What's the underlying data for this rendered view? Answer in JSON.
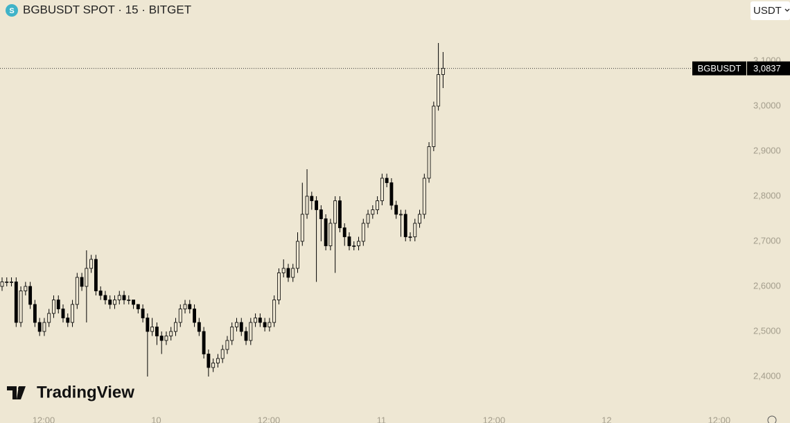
{
  "chart_data": {
    "type": "candlestick",
    "title": "BGBUSDT SPOT · 15 · BITGET",
    "currency": "USDT",
    "brand": "TradingView",
    "x": [
      0,
      1,
      2,
      3,
      4,
      5,
      6,
      7,
      8,
      9,
      10,
      11,
      12,
      13,
      14,
      15,
      16,
      17,
      18,
      19,
      20,
      21,
      22,
      23,
      24,
      25,
      26,
      27,
      28,
      29,
      30,
      31,
      32,
      33,
      34,
      35,
      36,
      37,
      38,
      39,
      40,
      41,
      42,
      43,
      44,
      45,
      46,
      47,
      48,
      49,
      50,
      51,
      52,
      53,
      54,
      55,
      56,
      57,
      58,
      59,
      60,
      61,
      62,
      63,
      64,
      65,
      66,
      67,
      68,
      69,
      70,
      71,
      72,
      73,
      74,
      75,
      76,
      77,
      78,
      79,
      80,
      81,
      82,
      83,
      84,
      85,
      86,
      87,
      88,
      89,
      90,
      91,
      92,
      93,
      94
    ],
    "open": [
      2.6,
      2.61,
      2.61,
      2.61,
      2.52,
      2.59,
      2.6,
      2.56,
      2.52,
      2.5,
      2.52,
      2.54,
      2.57,
      2.55,
      2.53,
      2.52,
      2.56,
      2.62,
      2.6,
      2.64,
      2.66,
      2.59,
      2.58,
      2.57,
      2.56,
      2.57,
      2.58,
      2.57,
      2.57,
      2.56,
      2.55,
      2.53,
      2.5,
      2.51,
      2.49,
      2.48,
      2.49,
      2.5,
      2.52,
      2.55,
      2.56,
      2.55,
      2.52,
      2.5,
      2.45,
      2.42,
      2.43,
      2.44,
      2.46,
      2.48,
      2.51,
      2.52,
      2.5,
      2.48,
      2.52,
      2.53,
      2.52,
      2.51,
      2.52,
      2.57,
      2.63,
      2.64,
      2.62,
      2.64,
      2.7,
      2.76,
      2.8,
      2.79,
      2.77,
      2.75,
      2.69,
      2.74,
      2.79,
      2.73,
      2.71,
      2.69,
      2.69,
      2.7,
      2.74,
      2.76,
      2.77,
      2.79,
      2.84,
      2.83,
      2.78,
      2.76,
      2.76,
      2.71,
      2.71,
      2.74,
      2.76,
      2.84,
      2.91,
      3.0,
      3.07
    ],
    "high": [
      2.62,
      2.62,
      2.62,
      2.62,
      2.6,
      2.61,
      2.61,
      2.57,
      2.53,
      2.53,
      2.55,
      2.58,
      2.58,
      2.56,
      2.54,
      2.57,
      2.63,
      2.63,
      2.68,
      2.67,
      2.67,
      2.6,
      2.59,
      2.58,
      2.58,
      2.59,
      2.59,
      2.58,
      2.57,
      2.56,
      2.56,
      2.54,
      2.53,
      2.52,
      2.5,
      2.5,
      2.51,
      2.53,
      2.56,
      2.57,
      2.57,
      2.56,
      2.53,
      2.51,
      2.46,
      2.44,
      2.45,
      2.47,
      2.49,
      2.52,
      2.53,
      2.53,
      2.51,
      2.53,
      2.54,
      2.54,
      2.53,
      2.53,
      2.58,
      2.64,
      2.66,
      2.65,
      2.65,
      2.72,
      2.83,
      2.86,
      2.81,
      2.8,
      2.78,
      2.76,
      2.75,
      2.8,
      2.8,
      2.74,
      2.72,
      2.7,
      2.71,
      2.75,
      2.77,
      2.78,
      2.8,
      2.85,
      2.85,
      2.84,
      2.79,
      2.77,
      2.77,
      2.72,
      2.75,
      2.77,
      2.85,
      2.92,
      3.01,
      3.14,
      3.12
    ],
    "low": [
      2.59,
      2.6,
      2.6,
      2.51,
      2.51,
      2.58,
      2.55,
      2.51,
      2.49,
      2.49,
      2.51,
      2.53,
      2.54,
      2.52,
      2.51,
      2.51,
      2.55,
      2.59,
      2.52,
      2.63,
      2.58,
      2.57,
      2.56,
      2.55,
      2.55,
      2.56,
      2.56,
      2.56,
      2.55,
      2.54,
      2.52,
      2.4,
      2.49,
      2.47,
      2.45,
      2.47,
      2.48,
      2.49,
      2.51,
      2.54,
      2.54,
      2.51,
      2.49,
      2.44,
      2.4,
      2.41,
      2.42,
      2.43,
      2.45,
      2.47,
      2.5,
      2.49,
      2.47,
      2.47,
      2.51,
      2.51,
      2.5,
      2.5,
      2.51,
      2.56,
      2.62,
      2.61,
      2.61,
      2.63,
      2.69,
      2.75,
      2.77,
      2.61,
      2.7,
      2.68,
      2.68,
      2.63,
      2.72,
      2.69,
      2.68,
      2.68,
      2.68,
      2.69,
      2.73,
      2.75,
      2.76,
      2.78,
      2.82,
      2.77,
      2.75,
      2.71,
      2.7,
      2.7,
      2.7,
      2.73,
      2.75,
      2.83,
      2.9,
      2.99,
      3.04
    ],
    "close": [
      2.61,
      2.61,
      2.61,
      2.52,
      2.59,
      2.6,
      2.56,
      2.52,
      2.5,
      2.52,
      2.54,
      2.57,
      2.55,
      2.53,
      2.52,
      2.56,
      2.62,
      2.6,
      2.64,
      2.66,
      2.59,
      2.58,
      2.57,
      2.56,
      2.57,
      2.58,
      2.57,
      2.57,
      2.56,
      2.55,
      2.53,
      2.5,
      2.51,
      2.49,
      2.48,
      2.49,
      2.5,
      2.52,
      2.55,
      2.56,
      2.55,
      2.52,
      2.5,
      2.45,
      2.42,
      2.43,
      2.44,
      2.46,
      2.48,
      2.51,
      2.52,
      2.5,
      2.48,
      2.52,
      2.53,
      2.52,
      2.51,
      2.52,
      2.57,
      2.63,
      2.64,
      2.62,
      2.64,
      2.7,
      2.76,
      2.8,
      2.79,
      2.77,
      2.75,
      2.69,
      2.74,
      2.79,
      2.73,
      2.71,
      2.69,
      2.69,
      2.7,
      2.74,
      2.76,
      2.77,
      2.79,
      2.84,
      2.83,
      2.78,
      2.76,
      2.76,
      2.71,
      2.71,
      2.74,
      2.76,
      2.84,
      2.91,
      3.0,
      3.07,
      3.0837
    ],
    "price_line": {
      "name": "BGBUSDT",
      "value": 3.0837,
      "label": "3,0837"
    },
    "xlim": [
      0,
      160
    ],
    "ylim": [
      2.2969,
      3.2354
    ],
    "yticks": [
      {
        "value": 2.4,
        "label": "2,4000"
      },
      {
        "value": 2.5,
        "label": "2,5000"
      },
      {
        "value": 2.6,
        "label": "2,6000"
      },
      {
        "value": 2.7,
        "label": "2,7000"
      },
      {
        "value": 2.8,
        "label": "2,8000"
      },
      {
        "value": 2.9,
        "label": "2,9000"
      },
      {
        "value": 3.0,
        "label": "3,0000"
      },
      {
        "value": 3.1,
        "label": "3,1000"
      }
    ],
    "xticks": [
      {
        "value": 9.3,
        "label": "12:00"
      },
      {
        "value": 33.3,
        "label": "10"
      },
      {
        "value": 57.3,
        "label": "12:00"
      },
      {
        "value": 81.3,
        "label": "11"
      },
      {
        "value": 105.3,
        "label": "12:00"
      },
      {
        "value": 129.3,
        "label": "12"
      },
      {
        "value": 153.3,
        "label": "12:00"
      }
    ],
    "up_color": "#eee7d3",
    "down_color": "#000000",
    "outline_color": "#000000"
  }
}
